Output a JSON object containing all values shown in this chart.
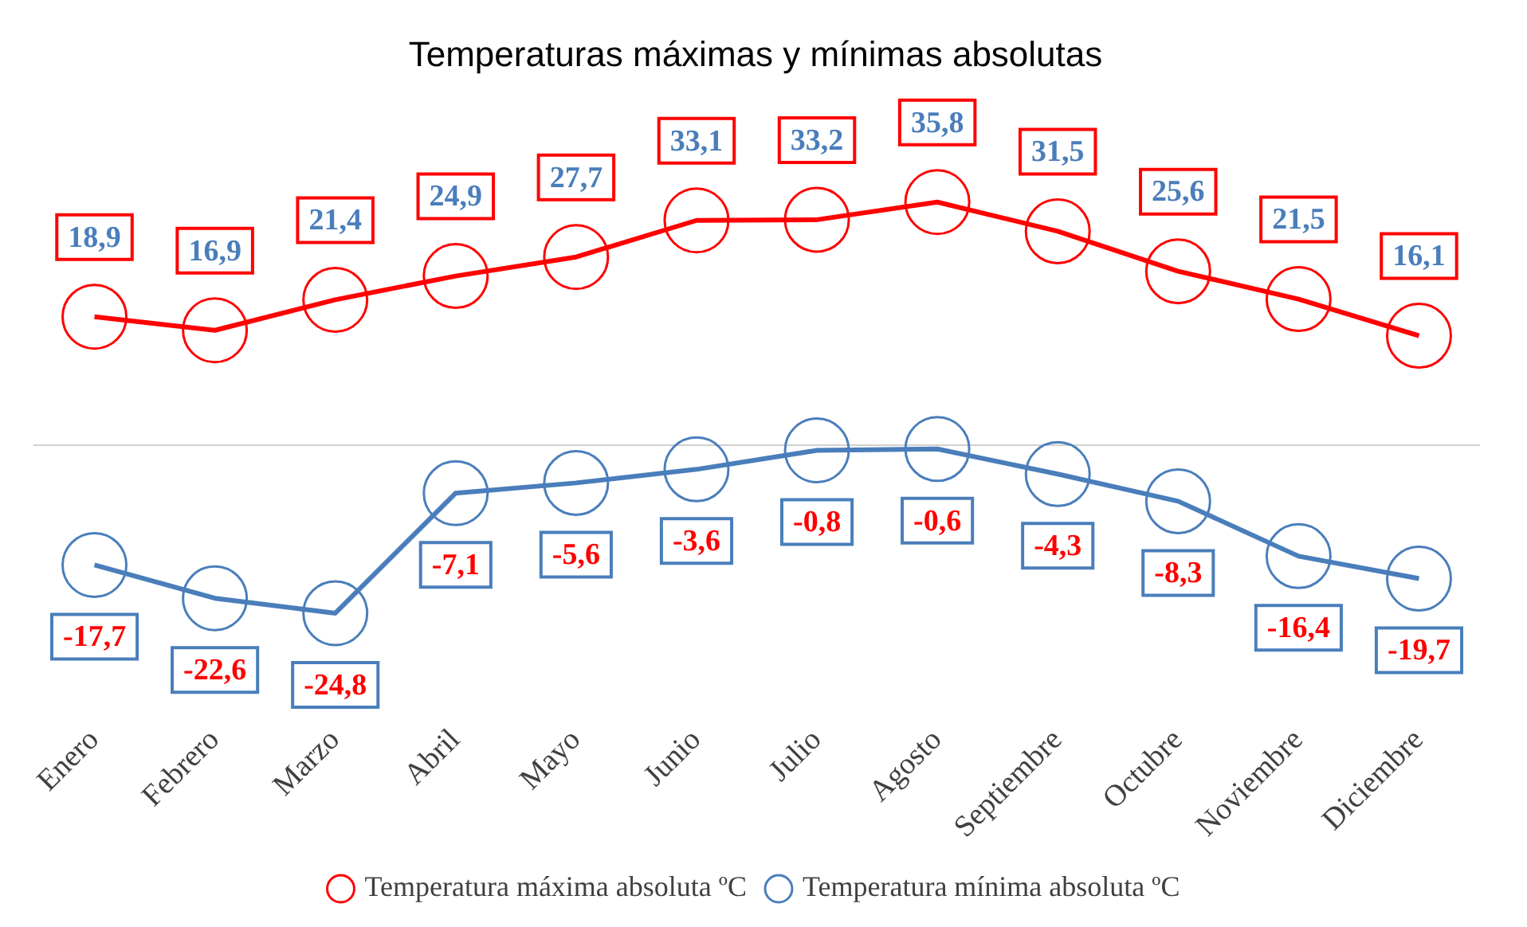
{
  "chart_data": {
    "type": "line",
    "title": "Temperaturas máximas y mínimas absolutas",
    "categories": [
      "Enero",
      "Febrero",
      "Marzo",
      "Abril",
      "Mayo",
      "Junio",
      "Julio",
      "Agosto",
      "Septiembre",
      "Octubre",
      "Noviembre",
      "Diciembre"
    ],
    "series": [
      {
        "name": "Temperatura máxima absoluta ºC",
        "color": "#ff0000",
        "values": [
          18.9,
          16.9,
          21.4,
          24.9,
          27.7,
          33.1,
          33.2,
          35.8,
          31.5,
          25.6,
          21.5,
          16.1
        ],
        "value_labels": [
          "18,9",
          "16,9",
          "21,4",
          "24,9",
          "27,7",
          "33,1",
          "33,2",
          "35,8",
          "31,5",
          "25,6",
          "21,5",
          "16,1"
        ]
      },
      {
        "name": "Temperatura mínima absoluta ºC",
        "color": "#4a7ebb",
        "values": [
          -17.7,
          -22.6,
          -24.8,
          -7.1,
          -5.6,
          -3.6,
          -0.8,
          -0.6,
          -4.3,
          -8.3,
          -16.4,
          -19.7
        ],
        "value_labels": [
          "-17,7",
          "-22,6",
          "-24,8",
          "-7,1",
          "-5,6",
          "-3,6",
          "-0,8",
          "-0,6",
          "-4,3",
          "-8,3",
          "-16,4",
          "-19,7"
        ]
      }
    ],
    "legend": "bottom",
    "marker": "circle",
    "grid": false
  }
}
